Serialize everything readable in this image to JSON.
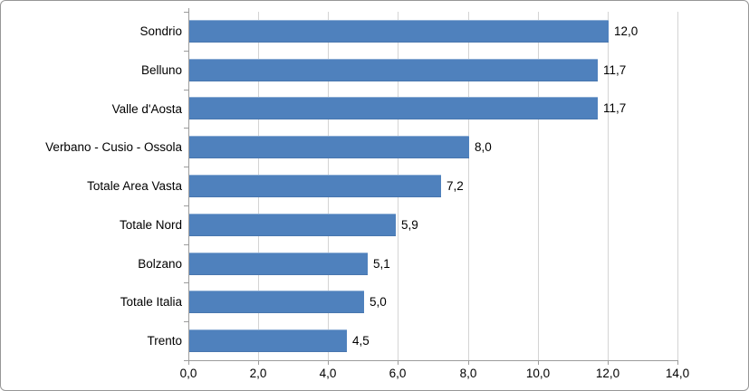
{
  "chart_data": {
    "type": "bar",
    "orientation": "horizontal",
    "title": "",
    "categories": [
      "Sondrio",
      "Belluno",
      "Valle d'Aosta",
      "Verbano - Cusio - Ossola",
      "Totale Area Vasta",
      "Totale Nord",
      "Bolzano",
      "Totale Italia",
      "Trento"
    ],
    "values": [
      12.0,
      11.7,
      11.7,
      8.0,
      7.2,
      5.9,
      5.1,
      5.0,
      4.5
    ],
    "value_labels": [
      "12,0",
      "11,7",
      "11,7",
      "8,0",
      "7,2",
      "5,9",
      "5,1",
      "5,0",
      "4,5"
    ],
    "xlabel": "",
    "ylabel": "",
    "xlim": [
      0,
      14
    ],
    "x_ticks": [
      0,
      2,
      4,
      6,
      8,
      10,
      12,
      14
    ],
    "x_tick_labels": [
      "0,0",
      "2,0",
      "4,0",
      "6,0",
      "8,0",
      "10,0",
      "12,0",
      "14,0"
    ],
    "grid": true,
    "legend": false,
    "bar_color": "#4F81BD",
    "gridline_color": "#D4D4D4",
    "axis_color": "#9C9C9C",
    "label_color": "#000000",
    "background_color": "#FFFFFF",
    "frame_border_color": "#979797"
  }
}
